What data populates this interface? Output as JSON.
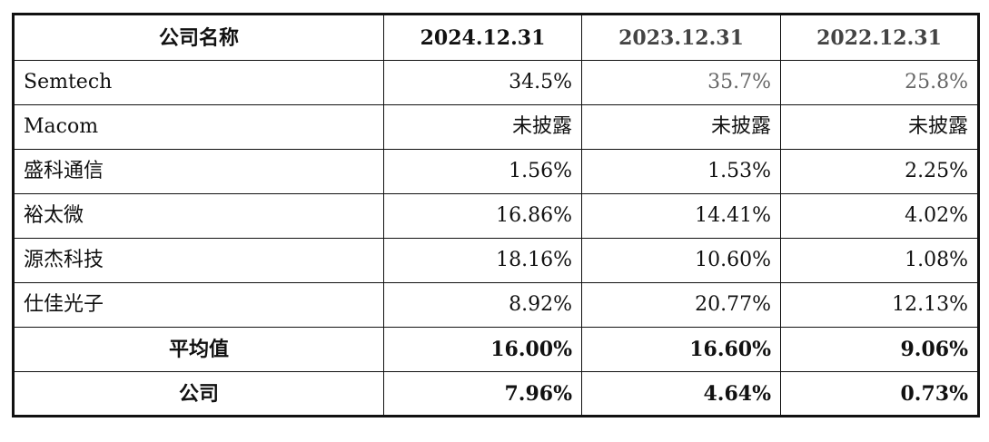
{
  "table": {
    "headers": [
      "公司名称",
      "2024.12.31",
      "2023.12.31",
      "2022.12.31"
    ],
    "rows": [
      {
        "name": "Semtech",
        "values": [
          "34.5%",
          "35.7%",
          "25.8%"
        ]
      },
      {
        "name": "Macom",
        "values": [
          "未披露",
          "未披露",
          "未披露"
        ]
      },
      {
        "name": "盛科通信",
        "values": [
          "1.56%",
          "1.53%",
          "2.25%"
        ]
      },
      {
        "name": "裕太微",
        "values": [
          "16.86%",
          "14.41%",
          "4.02%"
        ]
      },
      {
        "name": "源杰科技",
        "values": [
          "18.16%",
          "10.60%",
          "1.08%"
        ]
      },
      {
        "name": "仕佳光子",
        "values": [
          "8.92%",
          "20.77%",
          "12.13%"
        ]
      }
    ],
    "average": {
      "name": "平均值",
      "values": [
        "16.00%",
        "16.60%",
        "9.06%"
      ]
    },
    "company": {
      "name": "公司",
      "values": [
        "7.96%",
        "4.64%",
        "0.73%"
      ]
    }
  }
}
